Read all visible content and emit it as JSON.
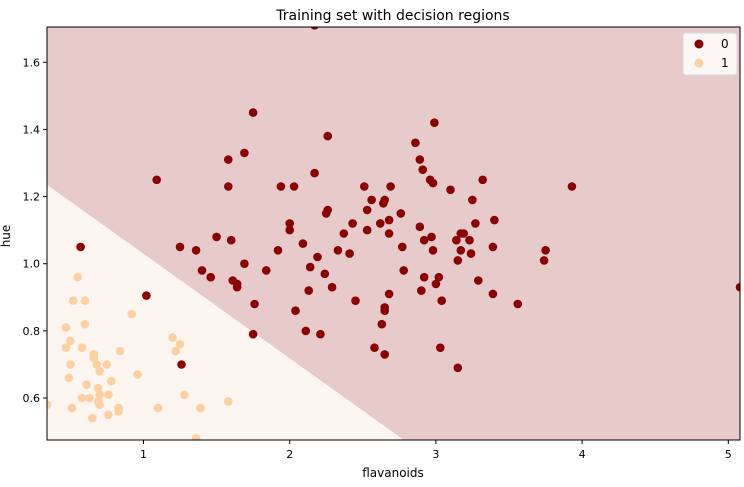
{
  "chart_data": {
    "type": "scatter",
    "title": "Training set with decision regions",
    "xlabel": "flavanoids",
    "ylabel": "hue",
    "xlim": [
      0.34,
      5.08
    ],
    "ylim": [
      0.475,
      1.705
    ],
    "x_ticks": [
      1,
      2,
      3,
      4,
      5
    ],
    "y_ticks": [
      0.6,
      0.8,
      1.0,
      1.2,
      1.4,
      1.6
    ],
    "x_tick_labels": [
      "1",
      "2",
      "3",
      "4",
      "5"
    ],
    "y_tick_labels": [
      "0.6",
      "0.8",
      "1.0",
      "1.2",
      "1.4",
      "1.6"
    ],
    "grid": false,
    "legend": {
      "position": "top-right",
      "entries": [
        "0",
        "1"
      ]
    },
    "colors": {
      "class0_point": "#8b0000",
      "class1_point": "#fdd0a2",
      "class0_region": "#e7cbcb",
      "class1_region": "#fdf5ef"
    },
    "decision_boundary": [
      [
        0.34,
        1.235
      ],
      [
        2.78,
        0.475
      ]
    ],
    "series": [
      {
        "name": "0",
        "points": [
          [
            0.57,
            1.05
          ],
          [
            1.02,
            0.905
          ],
          [
            1.09,
            1.25
          ],
          [
            1.25,
            1.05
          ],
          [
            1.26,
            0.7
          ],
          [
            1.36,
            1.04
          ],
          [
            1.4,
            0.98
          ],
          [
            1.46,
            0.96
          ],
          [
            1.5,
            1.08
          ],
          [
            1.58,
            1.31
          ],
          [
            1.58,
            1.23
          ],
          [
            1.6,
            1.07
          ],
          [
            1.61,
            0.95
          ],
          [
            1.64,
            0.93
          ],
          [
            1.64,
            0.94
          ],
          [
            1.69,
            1.33
          ],
          [
            1.69,
            1.0
          ],
          [
            1.75,
            1.45
          ],
          [
            1.75,
            0.79
          ],
          [
            1.76,
            0.88
          ],
          [
            1.84,
            0.98
          ],
          [
            1.92,
            1.04
          ],
          [
            1.94,
            1.23
          ],
          [
            2.0,
            1.12
          ],
          [
            2.0,
            1.1
          ],
          [
            2.03,
            1.23
          ],
          [
            2.04,
            0.86
          ],
          [
            2.09,
            1.06
          ],
          [
            2.11,
            0.8
          ],
          [
            2.13,
            0.92
          ],
          [
            2.14,
            0.99
          ],
          [
            2.17,
            1.71
          ],
          [
            2.17,
            1.27
          ],
          [
            2.19,
            1.02
          ],
          [
            2.21,
            0.79
          ],
          [
            2.24,
            0.97
          ],
          [
            2.25,
            1.15
          ],
          [
            2.26,
            1.16
          ],
          [
            2.26,
            1.38
          ],
          [
            2.29,
            0.93
          ],
          [
            2.33,
            1.04
          ],
          [
            2.37,
            1.09
          ],
          [
            2.41,
            1.03
          ],
          [
            2.43,
            1.12
          ],
          [
            2.45,
            0.89
          ],
          [
            2.51,
            1.23
          ],
          [
            2.53,
            1.1
          ],
          [
            2.53,
            1.16
          ],
          [
            2.56,
            1.19
          ],
          [
            2.58,
            0.75
          ],
          [
            2.62,
            1.12
          ],
          [
            2.63,
            0.82
          ],
          [
            2.64,
            1.18
          ],
          [
            2.65,
            1.19
          ],
          [
            2.65,
            0.87
          ],
          [
            2.65,
            0.86
          ],
          [
            2.65,
            0.73
          ],
          [
            2.68,
            1.13
          ],
          [
            2.68,
            1.09
          ],
          [
            2.68,
            0.91
          ],
          [
            2.69,
            1.23
          ],
          [
            2.76,
            1.15
          ],
          [
            2.77,
            1.05
          ],
          [
            2.78,
            0.98
          ],
          [
            2.86,
            1.36
          ],
          [
            2.89,
            1.31
          ],
          [
            2.89,
            1.11
          ],
          [
            2.9,
            0.92
          ],
          [
            2.91,
            1.28
          ],
          [
            2.92,
            1.07
          ],
          [
            2.92,
            0.96
          ],
          [
            2.96,
            1.25
          ],
          [
            2.97,
            1.08
          ],
          [
            2.98,
            1.04
          ],
          [
            2.98,
            1.24
          ],
          [
            2.99,
            1.42
          ],
          [
            3.0,
            0.94
          ],
          [
            3.02,
            0.96
          ],
          [
            3.03,
            0.75
          ],
          [
            3.04,
            0.89
          ],
          [
            3.1,
            1.22
          ],
          [
            3.14,
            1.07
          ],
          [
            3.15,
            1.01
          ],
          [
            3.15,
            0.69
          ],
          [
            3.17,
            1.09
          ],
          [
            3.17,
            1.04
          ],
          [
            3.19,
            1.09
          ],
          [
            3.23,
            1.07
          ],
          [
            3.24,
            1.03
          ],
          [
            3.25,
            1.19
          ],
          [
            3.27,
            1.12
          ],
          [
            3.29,
            0.95
          ],
          [
            3.32,
            1.25
          ],
          [
            3.39,
            1.05
          ],
          [
            3.39,
            0.91
          ],
          [
            3.4,
            1.13
          ],
          [
            3.56,
            0.88
          ],
          [
            3.74,
            1.01
          ],
          [
            3.75,
            1.04
          ],
          [
            3.93,
            1.23
          ],
          [
            5.08,
            0.93
          ]
        ]
      },
      {
        "name": "1",
        "points": [
          [
            0.34,
            0.58
          ],
          [
            0.47,
            0.81
          ],
          [
            0.47,
            0.75
          ],
          [
            0.49,
            0.66
          ],
          [
            0.5,
            0.7
          ],
          [
            0.5,
            0.77
          ],
          [
            0.51,
            0.57
          ],
          [
            0.52,
            0.89
          ],
          [
            0.55,
            0.96
          ],
          [
            0.58,
            0.75
          ],
          [
            0.58,
            0.6
          ],
          [
            0.6,
            0.89
          ],
          [
            0.6,
            0.82
          ],
          [
            0.61,
            0.64
          ],
          [
            0.63,
            0.6
          ],
          [
            0.65,
            0.54
          ],
          [
            0.66,
            0.73
          ],
          [
            0.66,
            0.72
          ],
          [
            0.68,
            0.7
          ],
          [
            0.69,
            0.63
          ],
          [
            0.69,
            0.59
          ],
          [
            0.7,
            0.58
          ],
          [
            0.7,
            0.61
          ],
          [
            0.7,
            0.68
          ],
          [
            0.75,
            0.7
          ],
          [
            0.76,
            0.61
          ],
          [
            0.76,
            0.55
          ],
          [
            0.78,
            0.65
          ],
          [
            0.83,
            0.57
          ],
          [
            0.83,
            0.56
          ],
          [
            0.84,
            0.74
          ],
          [
            0.92,
            0.85
          ],
          [
            0.96,
            0.67
          ],
          [
            1.1,
            0.57
          ],
          [
            1.2,
            0.78
          ],
          [
            1.22,
            0.74
          ],
          [
            1.25,
            0.76
          ],
          [
            1.28,
            0.61
          ],
          [
            1.36,
            0.48
          ],
          [
            1.39,
            0.57
          ],
          [
            1.58,
            0.59
          ]
        ]
      }
    ]
  }
}
